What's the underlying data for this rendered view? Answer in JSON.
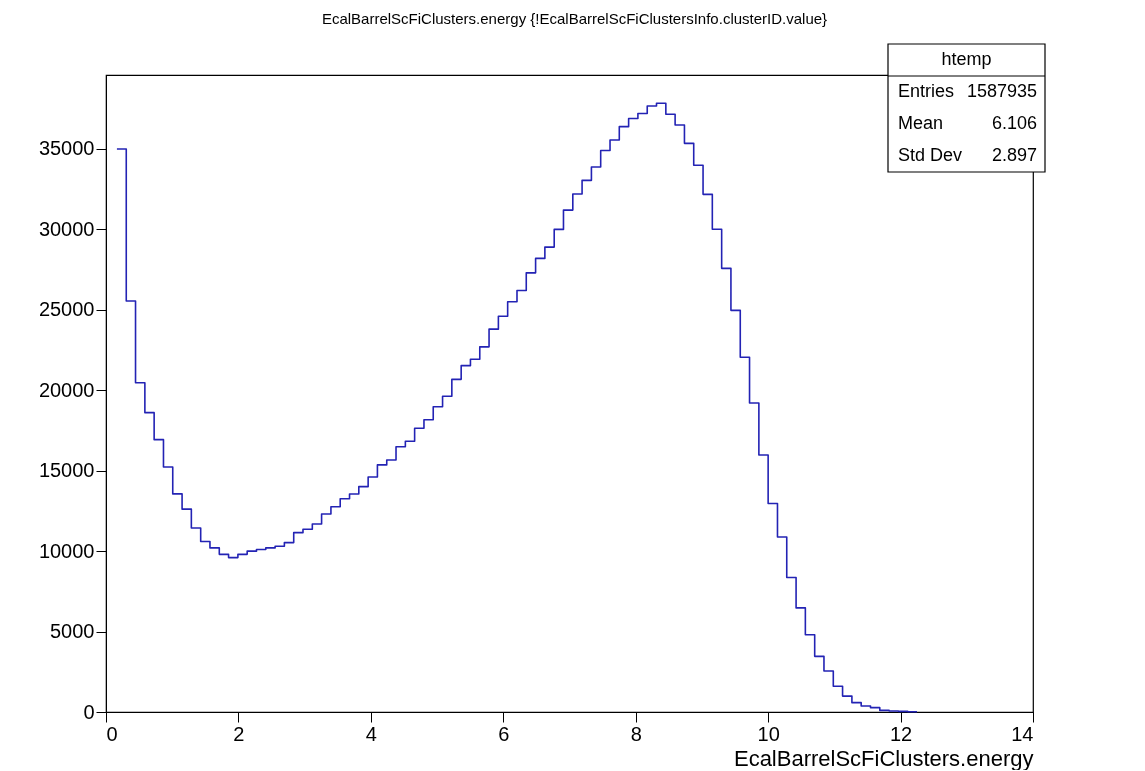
{
  "chart_data": {
    "type": "histogram",
    "title": "EcalBarrelScFiClusters.energy {!EcalBarrelScFiClustersInfo.clusterID.value}",
    "xlabel": "EcalBarrelScFiClusters.energy",
    "bins": [
      0.165,
      0.306,
      0.446,
      0.587,
      0.727,
      0.868,
      1.008,
      1.149,
      1.289,
      1.43,
      1.57,
      1.711,
      1.851,
      1.992,
      2.132,
      2.273,
      2.413,
      2.554,
      2.694,
      2.835,
      2.975,
      3.116,
      3.256,
      3.397,
      3.537,
      3.678,
      3.818,
      3.959,
      4.099,
      4.24,
      4.38,
      4.521,
      4.661,
      4.802,
      4.942,
      5.083,
      5.223,
      5.364,
      5.504,
      5.645,
      5.785,
      5.926,
      6.066,
      6.207,
      6.347,
      6.488,
      6.628,
      6.769,
      6.909,
      7.05,
      7.19,
      7.331,
      7.471,
      7.612,
      7.752,
      7.893,
      8.033,
      8.174,
      8.314,
      8.455,
      8.595,
      8.736,
      8.876,
      9.017,
      9.157,
      9.298,
      9.438,
      9.579,
      9.719,
      9.86,
      10.0,
      10.141,
      10.281,
      10.422,
      10.562,
      10.703,
      10.843,
      10.984,
      11.124,
      11.265,
      11.405,
      11.546,
      11.686,
      11.827,
      11.967,
      12.108,
      12.248
    ],
    "values": [
      35000,
      25550,
      20470,
      18610,
      16930,
      15230,
      13560,
      12610,
      11440,
      10600,
      10200,
      9800,
      9600,
      9800,
      10000,
      10100,
      10200,
      10300,
      10530,
      11150,
      11360,
      11690,
      12310,
      12760,
      13260,
      13550,
      14010,
      14610,
      15360,
      15670,
      16490,
      16830,
      17640,
      18170,
      18980,
      19630,
      20680,
      21530,
      21930,
      22700,
      23800,
      24600,
      25500,
      26200,
      27300,
      28200,
      28900,
      30000,
      31200,
      32200,
      33050,
      33880,
      34910,
      35560,
      36390,
      36900,
      37210,
      37670,
      37840,
      37160,
      36490,
      35350,
      33990,
      32180,
      30010,
      27580,
      24970,
      22050,
      19210,
      15980,
      12960,
      10880,
      8360,
      6470,
      4800,
      3460,
      2550,
      1600,
      990,
      580,
      370,
      270,
      100,
      60,
      40,
      20
    ],
    "color": "#2323b4",
    "xlim": [
      0,
      14
    ],
    "xticks": [
      0,
      2,
      4,
      6,
      8,
      10,
      12,
      14
    ],
    "ylim": [
      0,
      39600
    ],
    "yticks": [
      0,
      5000,
      10000,
      15000,
      20000,
      25000,
      30000,
      35000
    ],
    "grid": false,
    "annotations": [
      "htemp",
      "Entries",
      "1587935",
      "Mean",
      "6.106",
      "Std Dev",
      "2.897"
    ]
  }
}
